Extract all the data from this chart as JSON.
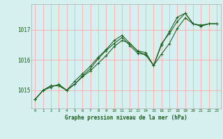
{
  "title": "Graphe pression niveau de la mer (hPa)",
  "background_color": "#d6f0f0",
  "grid_color": "#ffaaaa",
  "line_color": "#1a5c1a",
  "spine_color": "#aaaaaa",
  "xlim": [
    -0.5,
    23.5
  ],
  "ylim": [
    1014.4,
    1017.85
  ],
  "yticks": [
    1015,
    1016,
    1017
  ],
  "xticks": [
    0,
    1,
    2,
    3,
    4,
    5,
    6,
    7,
    8,
    9,
    10,
    11,
    12,
    13,
    14,
    15,
    16,
    17,
    18,
    19,
    20,
    21,
    22,
    23
  ],
  "series": [
    [
      1014.7,
      1015.0,
      1015.1,
      1015.2,
      1015.0,
      1015.2,
      1015.45,
      1015.65,
      1015.9,
      1016.15,
      1016.45,
      1016.65,
      1016.55,
      1016.3,
      1016.25,
      1015.82,
      1016.2,
      1016.55,
      1017.05,
      1017.4,
      1017.2,
      1017.15,
      1017.2,
      1017.2
    ],
    [
      1014.7,
      1015.0,
      1015.15,
      1015.15,
      1015.0,
      1015.3,
      1015.55,
      1015.8,
      1016.1,
      1016.35,
      1016.65,
      1016.82,
      1016.55,
      1016.28,
      1016.18,
      1015.82,
      1016.5,
      1016.95,
      1017.42,
      1017.55,
      1017.2,
      1017.12,
      1017.2,
      1017.2
    ],
    [
      1014.7,
      1015.0,
      1015.15,
      1015.15,
      1015.0,
      1015.2,
      1015.48,
      1015.72,
      1016.05,
      1016.32,
      1016.55,
      1016.75,
      1016.48,
      1016.22,
      1016.18,
      1015.82,
      1016.55,
      1016.88,
      1017.28,
      1017.55,
      1017.2,
      1017.15,
      1017.2,
      1017.2
    ]
  ]
}
